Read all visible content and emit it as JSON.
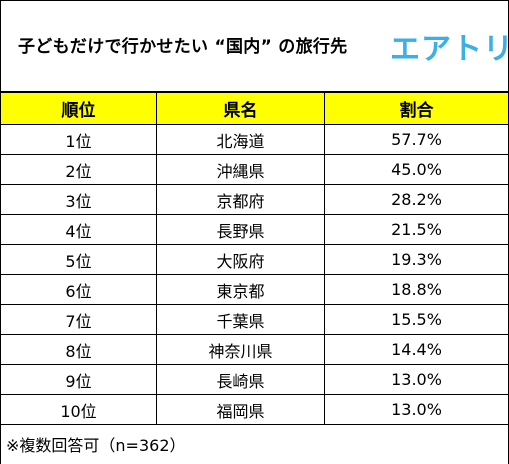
{
  "title": "子どもだけで行かせたい “国内” の旅行先",
  "logo": "エアトリ",
  "note": "※複数回答可（n=362）",
  "colors": {
    "header_bg": "#ffff00",
    "logo": "#3ab0e6"
  },
  "chart_data": {
    "type": "table",
    "columns": [
      "順位",
      "県名",
      "割合"
    ],
    "rows": [
      [
        "1位",
        "北海道",
        "57.7%"
      ],
      [
        "2位",
        "沖縄県",
        "45.0%"
      ],
      [
        "3位",
        "京都府",
        "28.2%"
      ],
      [
        "4位",
        "長野県",
        "21.5%"
      ],
      [
        "5位",
        "大阪府",
        "19.3%"
      ],
      [
        "6位",
        "東京都",
        "18.8%"
      ],
      [
        "7位",
        "千葉県",
        "15.5%"
      ],
      [
        "8位",
        "神奈川県",
        "14.4%"
      ],
      [
        "9位",
        "長崎県",
        "13.0%"
      ],
      [
        "10位",
        "福岡県",
        "13.0%"
      ]
    ],
    "values": [
      57.7,
      45.0,
      28.2,
      21.5,
      19.3,
      18.8,
      15.5,
      14.4,
      13.0,
      13.0
    ]
  }
}
